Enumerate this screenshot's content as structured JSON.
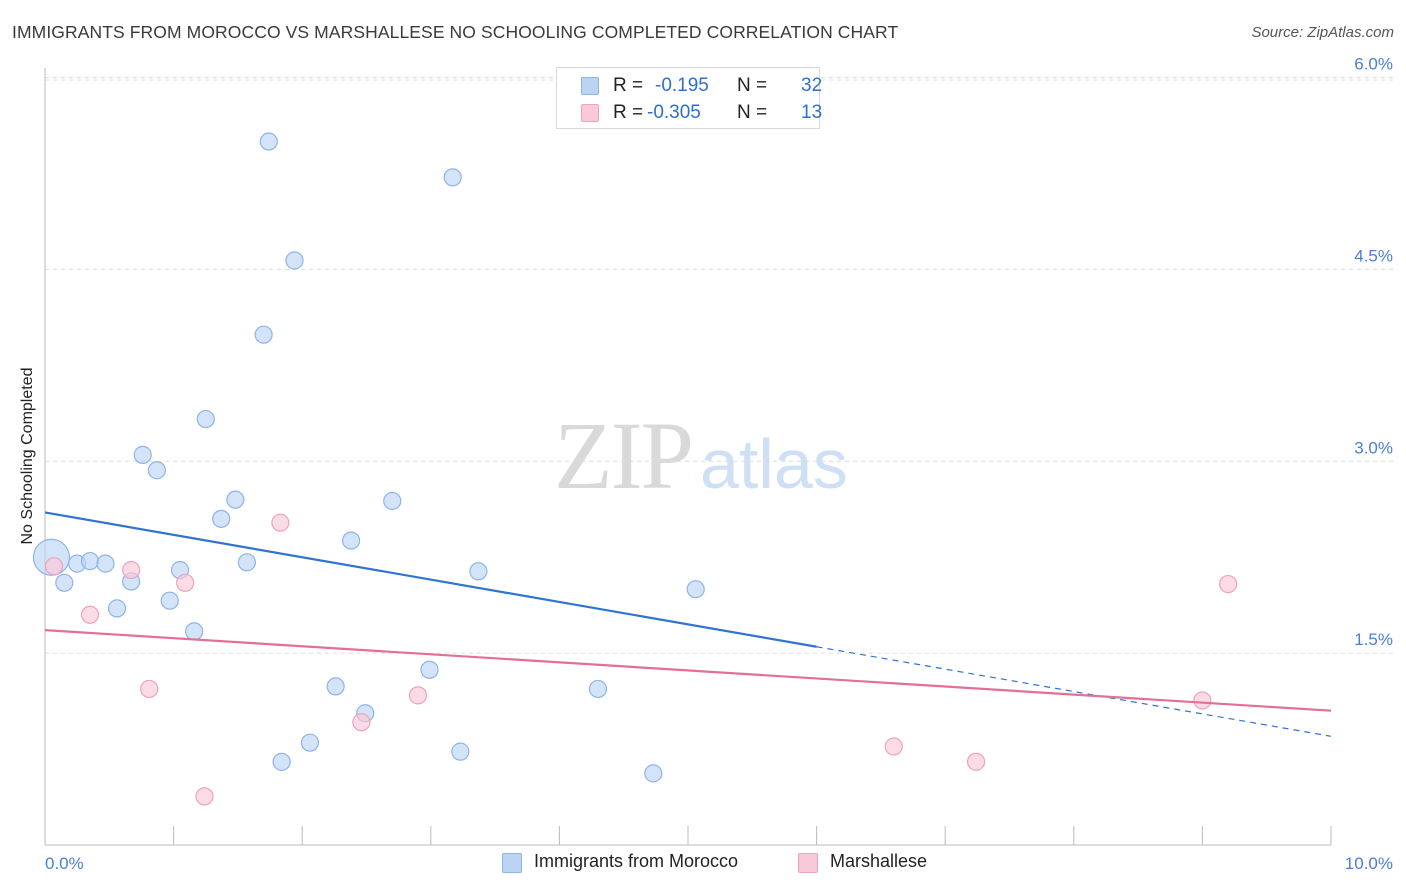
{
  "title": "IMMIGRANTS FROM MOROCCO VS MARSHALLESE NO SCHOOLING COMPLETED CORRELATION CHART",
  "source": "Source: ZipAtlas.com",
  "watermark": {
    "part1": "ZIP",
    "part2": "atlas"
  },
  "colors": {
    "blue_fill": "#bcd4f4",
    "blue_stroke": "#8eb4e8",
    "blue_line": "#2f74d0",
    "pink_fill": "#f9c9d8",
    "pink_stroke": "#f0a2bb",
    "pink_line": "#e46f96",
    "grid": "#dcdcdc",
    "axis_text": "#4a7fd4"
  },
  "legend_top": [
    {
      "r_label": "R =",
      "r_value": "-0.195",
      "n_label": "N =",
      "n_value": "32",
      "color": "blue"
    },
    {
      "r_label": "R =",
      "r_value": "-0.305",
      "n_label": "N =",
      "n_value": "13",
      "color": "pink"
    }
  ],
  "legend_bottom": [
    {
      "label": "Immigrants from Morocco",
      "color": "blue"
    },
    {
      "label": "Marshallese",
      "color": "pink"
    }
  ],
  "chart_data": {
    "type": "scatter",
    "title": "IMMIGRANTS FROM MOROCCO VS MARSHALLESE NO SCHOOLING COMPLETED CORRELATION CHART",
    "xlabel": "",
    "ylabel": "No Schooling Completed",
    "xlim": [
      0,
      10
    ],
    "ylim": [
      0,
      6.2
    ],
    "x_tick_labels": [
      "0.0%",
      "10.0%"
    ],
    "y_ticks": [
      1.5,
      3.0,
      4.5,
      6.0
    ],
    "y_tick_labels": [
      "1.5%",
      "3.0%",
      "4.5%",
      "6.0%"
    ],
    "grid": "horizontal dashed",
    "legend_placement": "top-center and bottom",
    "series": [
      {
        "name": "Immigrants from Morocco",
        "color": "blue",
        "points": [
          {
            "x": 0.05,
            "y": 2.25,
            "big": true
          },
          {
            "x": 0.15,
            "y": 2.05
          },
          {
            "x": 0.25,
            "y": 2.2
          },
          {
            "x": 0.35,
            "y": 2.22
          },
          {
            "x": 0.47,
            "y": 2.2
          },
          {
            "x": 0.56,
            "y": 1.85
          },
          {
            "x": 0.67,
            "y": 2.06
          },
          {
            "x": 0.76,
            "y": 3.05
          },
          {
            "x": 0.87,
            "y": 2.93
          },
          {
            "x": 0.97,
            "y": 1.91
          },
          {
            "x": 1.05,
            "y": 2.15
          },
          {
            "x": 1.16,
            "y": 1.67
          },
          {
            "x": 1.25,
            "y": 3.33
          },
          {
            "x": 1.37,
            "y": 2.55
          },
          {
            "x": 1.48,
            "y": 2.7
          },
          {
            "x": 1.57,
            "y": 2.21
          },
          {
            "x": 1.7,
            "y": 3.99
          },
          {
            "x": 1.74,
            "y": 5.5
          },
          {
            "x": 1.84,
            "y": 0.65
          },
          {
            "x": 1.94,
            "y": 4.57
          },
          {
            "x": 2.06,
            "y": 0.8
          },
          {
            "x": 2.26,
            "y": 1.24
          },
          {
            "x": 2.38,
            "y": 2.38
          },
          {
            "x": 2.49,
            "y": 1.03
          },
          {
            "x": 2.7,
            "y": 2.69
          },
          {
            "x": 2.99,
            "y": 1.37
          },
          {
            "x": 3.17,
            "y": 5.22
          },
          {
            "x": 3.23,
            "y": 0.73
          },
          {
            "x": 3.37,
            "y": 2.14
          },
          {
            "x": 4.3,
            "y": 1.22
          },
          {
            "x": 4.73,
            "y": 0.56
          },
          {
            "x": 5.06,
            "y": 2.0
          }
        ],
        "trend": {
          "x0": 0,
          "y0": 2.6,
          "x1": 6.0,
          "y1": 1.55,
          "dashed_to_x": 10.0,
          "dashed_to_y": 0.85
        }
      },
      {
        "name": "Marshallese",
        "color": "pink",
        "points": [
          {
            "x": 0.07,
            "y": 2.18
          },
          {
            "x": 0.35,
            "y": 1.8
          },
          {
            "x": 0.67,
            "y": 2.15
          },
          {
            "x": 0.81,
            "y": 1.22
          },
          {
            "x": 1.09,
            "y": 2.05
          },
          {
            "x": 1.24,
            "y": 0.38
          },
          {
            "x": 1.83,
            "y": 2.52
          },
          {
            "x": 2.46,
            "y": 0.96
          },
          {
            "x": 2.9,
            "y": 1.17
          },
          {
            "x": 6.6,
            "y": 0.77
          },
          {
            "x": 7.24,
            "y": 0.65
          },
          {
            "x": 9.0,
            "y": 1.13
          },
          {
            "x": 9.2,
            "y": 2.04
          }
        ],
        "trend": {
          "x0": 0,
          "y0": 1.68,
          "x1": 10.0,
          "y1": 1.05
        }
      }
    ]
  }
}
